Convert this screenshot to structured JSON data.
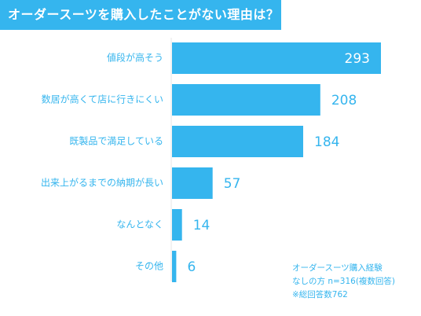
{
  "chart_data": {
    "type": "bar",
    "orientation": "horizontal",
    "title": "オーダースーツを購入したことがない理由は？",
    "categories": [
      "値段が高そう",
      "数居が高くて店に行きにくい",
      "既製品で満足している",
      "出来上がるまでの納期が長い",
      "なんとなく",
      "その他"
    ],
    "values": [
      293,
      208,
      184,
      57,
      14,
      6
    ],
    "xlim": [
      0,
      293
    ],
    "grid": false,
    "legend": "none",
    "bar_color": "#35b5ee"
  },
  "note": {
    "line1": "オーダースーツ購入経験",
    "line2": "なしの方  n=316(複数回答)",
    "line3": "※総回答数762"
  }
}
